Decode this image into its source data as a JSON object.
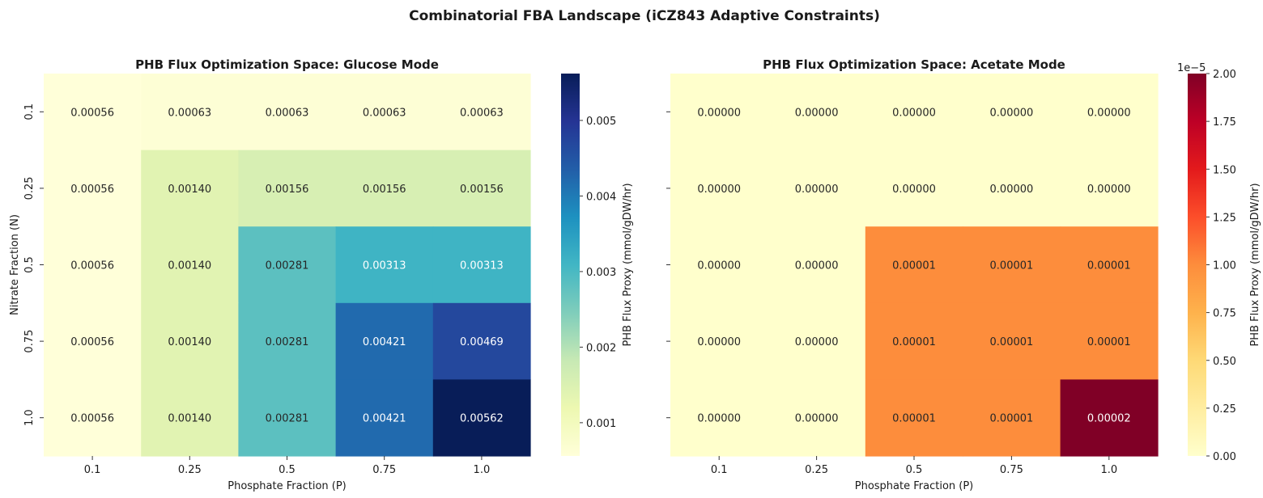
{
  "suptitle": "Combinatorial FBA Landscape (iCZ843 Adaptive Constraints)",
  "chart_data": [
    {
      "type": "heatmap",
      "title": "PHB Flux Optimization Space: Glucose Mode",
      "xlabel": "Phosphate Fraction (P)",
      "ylabel": "Nitrate Fraction (N)",
      "x_categories": [
        "0.1",
        "0.25",
        "0.5",
        "0.75",
        "1.0"
      ],
      "y_categories": [
        "0.1",
        "0.25",
        "0.5",
        "0.75",
        "1.0"
      ],
      "values": [
        [
          0.00056,
          0.00063,
          0.00063,
          0.00063,
          0.00063
        ],
        [
          0.00056,
          0.0014,
          0.00156,
          0.00156,
          0.00156
        ],
        [
          0.00056,
          0.0014,
          0.00281,
          0.00313,
          0.00313
        ],
        [
          0.00056,
          0.0014,
          0.00281,
          0.00421,
          0.00469
        ],
        [
          0.00056,
          0.0014,
          0.00281,
          0.00421,
          0.00562
        ]
      ],
      "annotations": [
        [
          "0.00056",
          "0.00063",
          "0.00063",
          "0.00063",
          "0.00063"
        ],
        [
          "0.00056",
          "0.00140",
          "0.00156",
          "0.00156",
          "0.00156"
        ],
        [
          "0.00056",
          "0.00140",
          "0.00281",
          "0.00313",
          "0.00313"
        ],
        [
          "0.00056",
          "0.00140",
          "0.00281",
          "0.00421",
          "0.00469"
        ],
        [
          "0.00056",
          "0.00140",
          "0.00281",
          "0.00421",
          "0.00562"
        ]
      ],
      "colormap": "YlGnBu",
      "colorbar": {
        "label": "PHB Flux Proxy (mmol/gDW/hr)",
        "range": [
          0.00056,
          0.00562
        ],
        "ticks": [
          0.001,
          0.002,
          0.003,
          0.004,
          0.005
        ],
        "tick_labels": [
          "0.001",
          "0.002",
          "0.003",
          "0.004",
          "0.005"
        ],
        "offset_text": ""
      }
    },
    {
      "type": "heatmap",
      "title": "PHB Flux Optimization Space: Acetate Mode",
      "xlabel": "Phosphate Fraction (P)",
      "ylabel": "",
      "x_categories": [
        "0.1",
        "0.25",
        "0.5",
        "0.75",
        "1.0"
      ],
      "y_categories": [
        "0.1",
        "0.25",
        "0.5",
        "0.75",
        "1.0"
      ],
      "show_y_tick_labels": false,
      "values": [
        [
          0,
          0,
          0,
          0,
          0
        ],
        [
          0,
          0,
          0,
          0,
          0
        ],
        [
          0,
          0,
          1e-05,
          1e-05,
          1e-05
        ],
        [
          0,
          0,
          1e-05,
          1e-05,
          1e-05
        ],
        [
          0,
          0,
          1e-05,
          1e-05,
          2e-05
        ]
      ],
      "annotations": [
        [
          "0.00000",
          "0.00000",
          "0.00000",
          "0.00000",
          "0.00000"
        ],
        [
          "0.00000",
          "0.00000",
          "0.00000",
          "0.00000",
          "0.00000"
        ],
        [
          "0.00000",
          "0.00000",
          "0.00001",
          "0.00001",
          "0.00001"
        ],
        [
          "0.00000",
          "0.00000",
          "0.00001",
          "0.00001",
          "0.00001"
        ],
        [
          "0.00000",
          "0.00000",
          "0.00001",
          "0.00001",
          "0.00002"
        ]
      ],
      "colormap": "YlOrRd",
      "colorbar": {
        "label": "PHB Flux Proxy (mmol/gDW/hr)",
        "range": [
          0,
          2.0
        ],
        "ticks": [
          0,
          0.25,
          0.5,
          0.75,
          1.0,
          1.25,
          1.5,
          1.75,
          2.0
        ],
        "tick_labels": [
          "0.00",
          "0.25",
          "0.50",
          "0.75",
          "1.00",
          "1.25",
          "1.50",
          "1.75",
          "2.00"
        ],
        "offset_text": "1e−5"
      }
    }
  ]
}
